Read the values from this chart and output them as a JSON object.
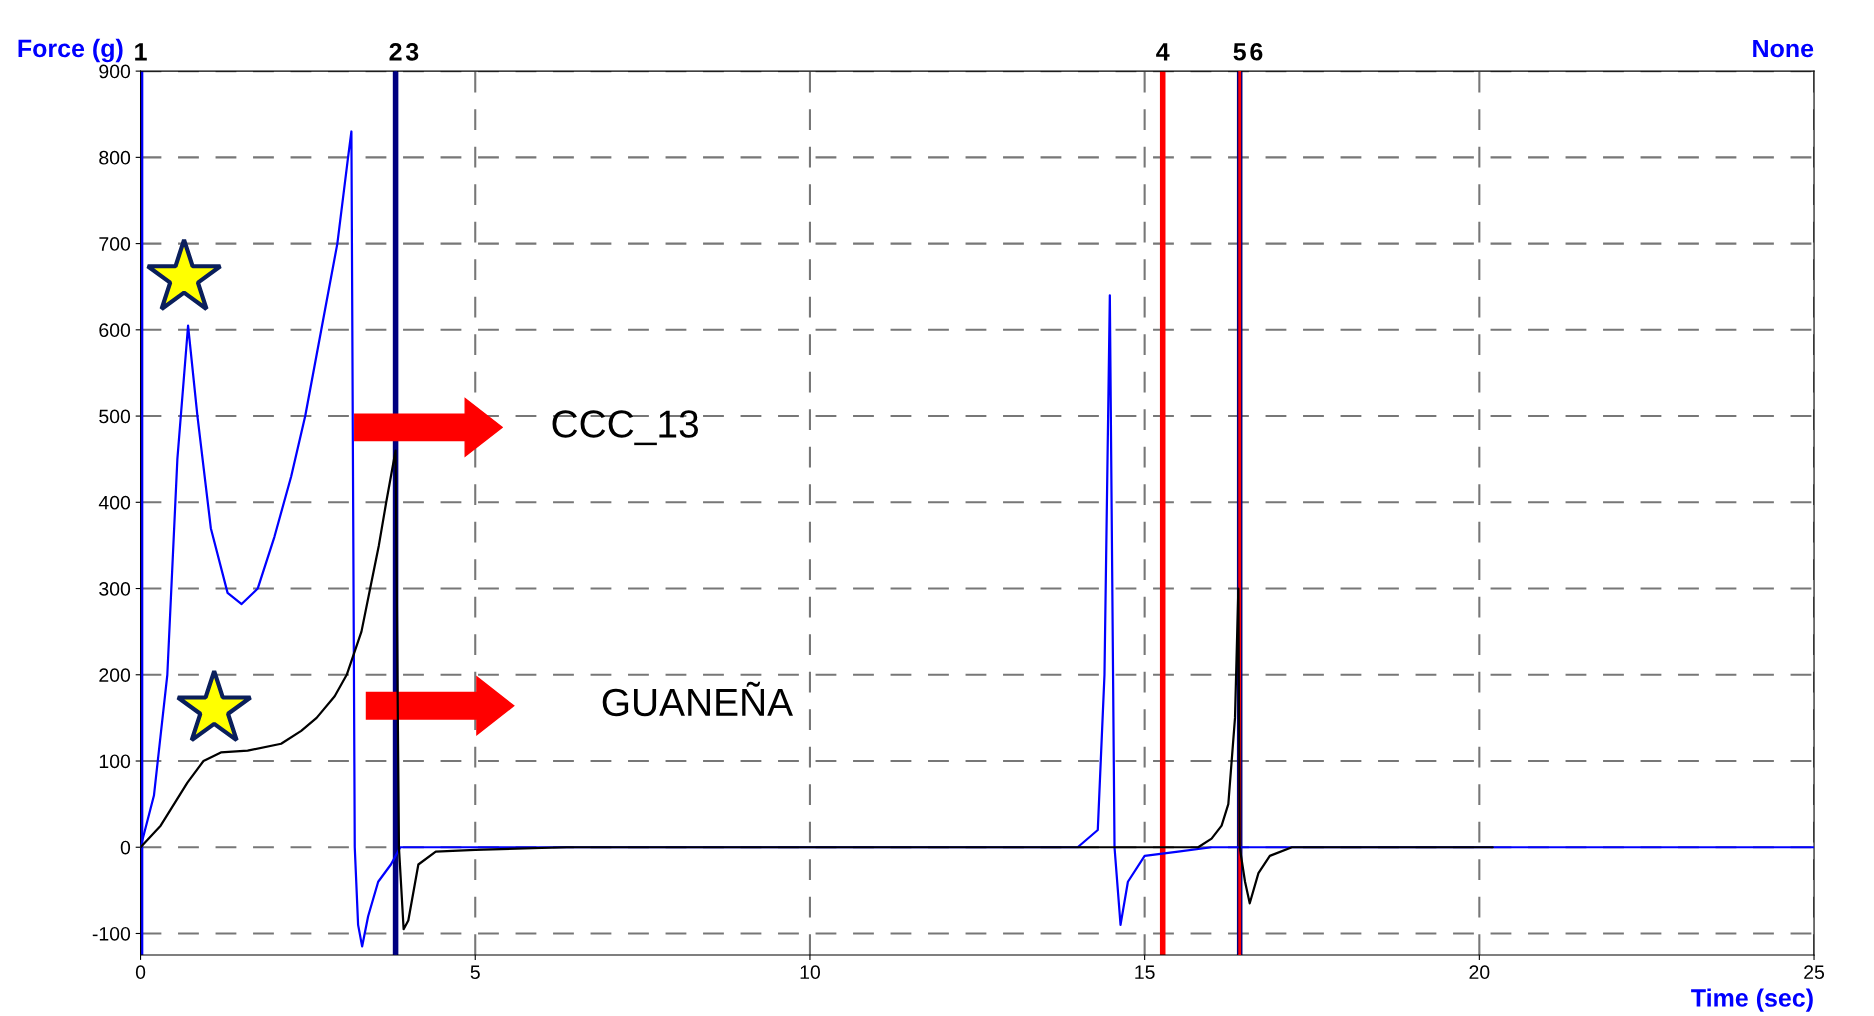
{
  "chart_data": {
    "type": "line",
    "ylabel": "Force (g)",
    "y2label": "None",
    "xlabel": "Time (sec)",
    "xlim": [
      0,
      25
    ],
    "xticks": [
      0,
      5,
      10,
      15,
      20,
      25
    ],
    "ylim": [
      -125,
      900
    ],
    "yticks": [
      -100,
      0,
      100,
      200,
      300,
      400,
      500,
      600,
      700,
      800,
      900
    ],
    "grid": true,
    "marker": "none",
    "line_style": "solid",
    "annotations": [
      "CCC_13",
      "GUANEÑA",
      {
        "text": "1",
        "x": 0,
        "y": 900
      },
      {
        "text": "2",
        "x": 3.81,
        "y": 900
      },
      {
        "text": "3",
        "x": 3.81,
        "y": 900
      },
      {
        "text": "4",
        "x": 15.27,
        "y": 900
      },
      {
        "text": "5",
        "x": 16.42,
        "y": 900
      },
      {
        "text": "6",
        "x": 16.42,
        "y": 900
      }
    ],
    "series": [
      {
        "color": "#0000ff",
        "x": [
          0,
          0.2,
          0.4,
          0.55,
          0.71,
          0.85,
          1.05,
          1.3,
          1.51,
          1.75,
          2.0,
          2.25,
          2.46,
          2.7,
          2.94,
          3.1,
          3.15,
          3.2,
          3.25,
          3.31,
          3.4,
          3.55,
          3.74,
          3.88,
          6,
          10,
          14.0,
          14.3,
          14.4,
          14.48,
          14.55,
          14.64,
          14.75,
          15.0,
          15.5,
          16.0,
          20,
          25
        ],
        "values": [
          0,
          60,
          200,
          450,
          605,
          500,
          370,
          295,
          282,
          300,
          360,
          430,
          500,
          600,
          700,
          800,
          830,
          0,
          -90,
          -115,
          -80,
          -40,
          -20,
          0,
          0,
          0,
          0,
          20,
          200,
          640,
          0,
          -90,
          -40,
          -10,
          -5,
          0,
          0,
          0
        ]
      },
      {
        "color": "#000000",
        "x": [
          0,
          0.3,
          0.5,
          0.7,
          0.94,
          1.2,
          1.6,
          2.1,
          2.4,
          2.63,
          2.9,
          3.08,
          3.3,
          3.43,
          3.56,
          3.67,
          3.81,
          3.86,
          3.93,
          4.0,
          4.15,
          4.41,
          5.0,
          6.37,
          10,
          15.8,
          16.0,
          16.15,
          16.25,
          16.35,
          16.4,
          16.42,
          16.5,
          16.57,
          16.7,
          16.87,
          17.2,
          20.2
        ],
        "values": [
          0,
          25,
          50,
          75,
          100,
          110,
          112,
          120,
          135,
          150,
          175,
          200,
          250,
          300,
          350,
          400,
          460,
          0,
          -95,
          -85,
          -20,
          -5,
          -3,
          0,
          0,
          0,
          10,
          25,
          50,
          150,
          300,
          0,
          -40,
          -65,
          -30,
          -10,
          0,
          0
        ]
      }
    ],
    "ref_lines": [
      {
        "axis": "x",
        "value": 0,
        "color": "#0000ff"
      },
      {
        "axis": "x",
        "value": 3.81,
        "color": "#000080"
      },
      {
        "axis": "x",
        "value": 3.81,
        "color": "#000080"
      },
      {
        "axis": "x",
        "value": 15.27,
        "color": "#ff0000"
      },
      {
        "axis": "x",
        "value": 16.42,
        "color": "#000080"
      },
      {
        "axis": "x",
        "value": 16.42,
        "color": "#ff0000"
      }
    ]
  }
}
